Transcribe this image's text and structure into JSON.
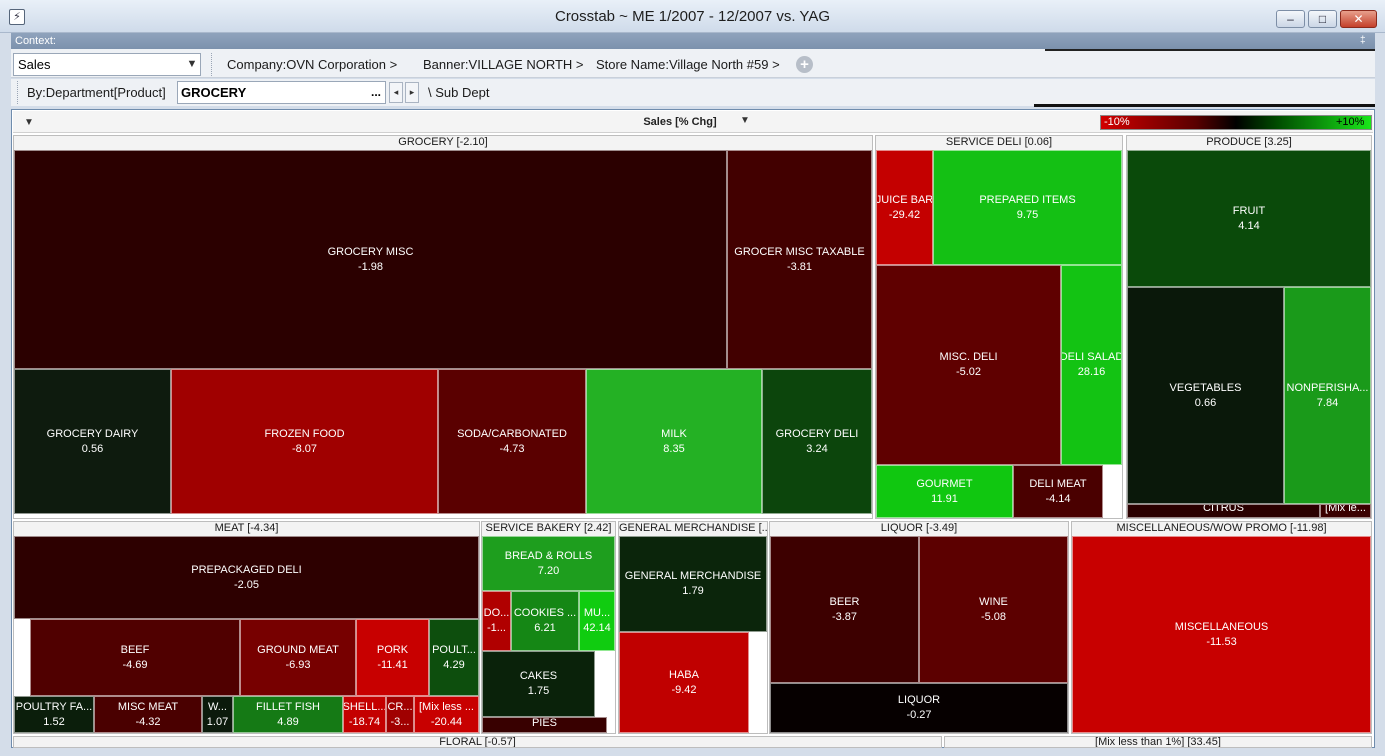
{
  "window": {
    "title": "Crosstab ~ ME 1/2007 - 12/2007  vs. YAG",
    "app_icon": "crosstab-app-icon",
    "minimize": "–",
    "maximize": "□",
    "close": "✕"
  },
  "context": {
    "label": "Context:",
    "pin": "‡"
  },
  "filters": {
    "measure_select": "Sales",
    "crumbs": [
      "Company:OVN Corporation >",
      "Banner:VILLAGE NORTH >",
      "Store Name:Village North #59 >"
    ],
    "add": "+"
  },
  "dimension": {
    "by_label": "By:Department[Product]",
    "value": "GROCERY",
    "ellipsis": "...",
    "prev": "◂",
    "next": "▸",
    "sub_label": "\\ Sub Dept"
  },
  "chart": {
    "measure_label": "Sales [% Chg]",
    "legend_min": "-10%",
    "legend_max": "+10%",
    "colors": {
      "neg_max": "#d20000",
      "neutral": "#000000",
      "pos_max": "#19e619"
    }
  },
  "treemap": {
    "groups": [
      {
        "label": "GROCERY [-2.10]",
        "pos": [
          13,
          135,
          860,
          384
        ],
        "tiles": [
          {
            "label": "GROCERY MISC",
            "value": "-1.98",
            "pos": [
              0,
              14,
              713,
              219
            ],
            "color": "#2b0000"
          },
          {
            "label": "GROCER MISC TAXABLE",
            "value": "-3.81",
            "pos": [
              713,
              14,
              145,
              219
            ],
            "color": "#420000"
          },
          {
            "label": "GROCERY DAIRY",
            "value": "0.56",
            "pos": [
              0,
              233,
              157,
              145
            ],
            "color": "#0e1b0e"
          },
          {
            "label": "FROZEN FOOD",
            "value": "-8.07",
            "pos": [
              157,
              233,
              267,
              145
            ],
            "color": "#a00000"
          },
          {
            "label": "SODA/CARBONATED",
            "value": "-4.73",
            "pos": [
              424,
              233,
              148,
              145
            ],
            "color": "#5a0000"
          },
          {
            "label": "MILK",
            "value": "8.35",
            "pos": [
              572,
              233,
              176,
              145
            ],
            "color": "#24b124"
          },
          {
            "label": "GROCERY DELI",
            "value": "3.24",
            "pos": [
              748,
              233,
              110,
              145
            ],
            "color": "#0c450c"
          }
        ]
      },
      {
        "label": "SERVICE DELI [0.06]",
        "pos": [
          875,
          135,
          248,
          384
        ],
        "tiles": [
          {
            "label": "JUICE BAR",
            "value": "-29.42",
            "pos": [
              0,
              14,
              57,
              115
            ],
            "color": "#c40000"
          },
          {
            "label": "PREPARED ITEMS",
            "value": "9.75",
            "pos": [
              57,
              14,
              189,
              115
            ],
            "color": "#14c014"
          },
          {
            "label": "MISC. DELI",
            "value": "-5.02",
            "pos": [
              0,
              129,
              185,
              200
            ],
            "color": "#5f0000"
          },
          {
            "label": "DELI SALAD",
            "value": "28.16",
            "pos": [
              185,
              129,
              61,
              200
            ],
            "color": "#13c313"
          },
          {
            "label": "GOURMET",
            "value": "11.91",
            "pos": [
              0,
              329,
              137,
              53
            ],
            "color": "#10c710"
          },
          {
            "label": "DELI MEAT",
            "value": "-4.14",
            "pos": [
              137,
              329,
              90,
              53
            ],
            "color": "#4a0000"
          }
        ]
      },
      {
        "label": "PRODUCE [3.25]",
        "pos": [
          1126,
          135,
          246,
          384
        ],
        "tiles": [
          {
            "label": "FRUIT",
            "value": "4.14",
            "pos": [
              0,
              14,
              244,
              137
            ],
            "color": "#0a4a0a"
          },
          {
            "label": "VEGETABLES",
            "value": "0.66",
            "pos": [
              0,
              151,
              157,
              217
            ],
            "color": "#0a180a"
          },
          {
            "label": "NONPERISHA...",
            "value": "7.84",
            "pos": [
              157,
              151,
              87,
              217
            ],
            "color": "#1a9a1a"
          },
          {
            "label": "CITRUS",
            "value": "",
            "pos": [
              0,
              368,
              193,
              14
            ],
            "color": "#2a0000",
            "bottom": true
          },
          {
            "label": "[Mix le...",
            "value": "",
            "pos": [
              193,
              368,
              51,
              14
            ],
            "color": "#3a0000",
            "bottom": true
          }
        ]
      },
      {
        "label": "MEAT [-4.34]",
        "pos": [
          13,
          521,
          467,
          213
        ],
        "tiles": [
          {
            "label": "PREPACKAGED DELI",
            "value": "-2.05",
            "pos": [
              0,
              14,
              465,
              83
            ],
            "color": "#2d0000"
          },
          {
            "label": "BEEF",
            "value": "-4.69",
            "pos": [
              16,
              97,
              210,
              77
            ],
            "color": "#500000"
          },
          {
            "label": "GROUND MEAT",
            "value": "-6.93",
            "pos": [
              226,
              97,
              116,
              77
            ],
            "color": "#770000"
          },
          {
            "label": "PORK",
            "value": "-11.41",
            "pos": [
              342,
              97,
              73,
              77
            ],
            "color": "#c80000"
          },
          {
            "label": "POULT...",
            "value": "4.29",
            "pos": [
              415,
              97,
              50,
              77
            ],
            "color": "#0d4e0d"
          },
          {
            "label": "POULTRY FA...",
            "value": "1.52",
            "pos": [
              0,
              174,
              80,
              37
            ],
            "color": "#0b1e0b"
          },
          {
            "label": "MISC MEAT",
            "value": "-4.32",
            "pos": [
              80,
              174,
              108,
              37
            ],
            "color": "#4a0000"
          },
          {
            "label": "W...",
            "value": "1.07",
            "pos": [
              188,
              174,
              31,
              37
            ],
            "color": "#0b1a0b"
          },
          {
            "label": "FILLET FISH",
            "value": "4.89",
            "pos": [
              219,
              174,
              110,
              37
            ],
            "color": "#157a15"
          },
          {
            "label": "SHELL...",
            "value": "-18.74",
            "pos": [
              329,
              174,
              43,
              37
            ],
            "color": "#c40000"
          },
          {
            "label": "CR...",
            "value": "-3...",
            "pos": [
              372,
              174,
              28,
              37
            ],
            "color": "#a00000"
          },
          {
            "label": "[Mix less ...",
            "value": "-20.44",
            "pos": [
              400,
              174,
              65,
              37
            ],
            "color": "#c80000"
          }
        ]
      },
      {
        "label": "SERVICE BAKERY [2.42]",
        "pos": [
          481,
          521,
          135,
          213
        ],
        "tiles": [
          {
            "label": "BREAD & ROLLS",
            "value": "7.20",
            "pos": [
              0,
              14,
              133,
              55
            ],
            "color": "#1e9e1e"
          },
          {
            "label": "DO...",
            "value": "-1...",
            "pos": [
              0,
              69,
              29,
              60
            ],
            "color": "#b00000"
          },
          {
            "label": "COOKIES ...",
            "value": "6.21",
            "pos": [
              29,
              69,
              68,
              60
            ],
            "color": "#158715"
          },
          {
            "label": "MU...",
            "value": "42.14",
            "pos": [
              97,
              69,
              36,
              60
            ],
            "color": "#10cc10"
          },
          {
            "label": "CAKES",
            "value": "1.75",
            "pos": [
              0,
              129,
              113,
              66
            ],
            "color": "#0a220a"
          },
          {
            "label": "PIES",
            "value": "",
            "pos": [
              0,
              195,
              125,
              16
            ],
            "color": "#380000",
            "bottom": true
          }
        ]
      },
      {
        "label": "GENERAL MERCHANDISE [...",
        "pos": [
          618,
          521,
          150,
          213
        ],
        "tiles": [
          {
            "label": "GENERAL MERCHANDISE",
            "value": "1.79",
            "pos": [
              0,
              14,
              148,
              96
            ],
            "color": "#0b250b"
          },
          {
            "label": "HABA",
            "value": "-9.42",
            "pos": [
              0,
              110,
              130,
              101
            ],
            "color": "#c00000"
          }
        ]
      },
      {
        "label": "LIQUOR [-3.49]",
        "pos": [
          769,
          521,
          300,
          213
        ],
        "tiles": [
          {
            "label": "BEER",
            "value": "-3.87",
            "pos": [
              0,
              14,
              149,
              147
            ],
            "color": "#3d0000"
          },
          {
            "label": "WINE",
            "value": "-5.08",
            "pos": [
              149,
              14,
              149,
              147
            ],
            "color": "#5c0000"
          },
          {
            "label": "LIQUOR",
            "value": "-0.27",
            "pos": [
              0,
              161,
              298,
              50
            ],
            "color": "#060000"
          }
        ]
      },
      {
        "label": "MISCELLANEOUS/WOW PROMO [-11.98]",
        "pos": [
          1071,
          521,
          301,
          213
        ],
        "tiles": [
          {
            "label": "MISCELLANEOUS",
            "value": "-11.53",
            "pos": [
              0,
              14,
              299,
              197
            ],
            "color": "#c80000"
          }
        ]
      },
      {
        "label": "FLORAL [-0.57]",
        "pos": [
          13,
          736,
          929,
          12
        ],
        "tiles": []
      },
      {
        "label": "[Mix less than 1%] [33.45]",
        "pos": [
          944,
          736,
          428,
          12
        ],
        "tiles": []
      }
    ]
  }
}
